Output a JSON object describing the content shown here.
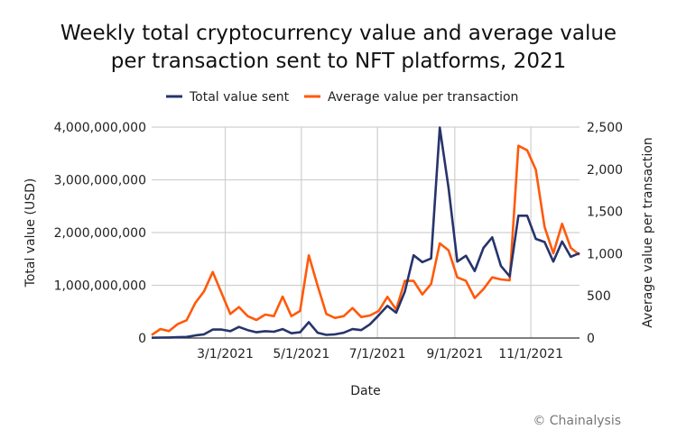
{
  "chart_data": {
    "type": "line",
    "title": "Weekly total cryptocurrency value and average value per transaction sent to NFT platforms, 2021",
    "xlabel": "Date",
    "ylabel_left": "Total value (USD)",
    "ylabel_right": "Average value per transaction",
    "x_tick_labels": [
      "3/1/2021",
      "5/1/2021",
      "7/1/2021",
      "9/1/2021",
      "11/1/2021"
    ],
    "x_tick_dates": [
      "2021-03-01",
      "2021-05-01",
      "2021-07-01",
      "2021-09-01",
      "2021-11-01"
    ],
    "y_left_tick_labels": [
      "0",
      "1,000,000,000",
      "2,000,000,000",
      "3,000,000,000",
      "4,000,000,000"
    ],
    "y_right_tick_labels": [
      "0",
      "500",
      "1,000",
      "1,500",
      "2,000",
      "2,500"
    ],
    "ylim_left": [
      0,
      4000000000
    ],
    "ylim_right": [
      0,
      2500
    ],
    "grid": true,
    "legend_position": "top",
    "x_start": "2021-01-01",
    "x_interval_days": 7,
    "series": [
      {
        "name": "Total value sent",
        "axis": "left",
        "color": "#27346b",
        "values": [
          5000000,
          8000000,
          10000000,
          15000000,
          20000000,
          50000000,
          70000000,
          160000000,
          160000000,
          130000000,
          210000000,
          150000000,
          110000000,
          130000000,
          120000000,
          170000000,
          90000000,
          110000000,
          300000000,
          100000000,
          60000000,
          70000000,
          100000000,
          170000000,
          150000000,
          260000000,
          430000000,
          610000000,
          480000000,
          880000000,
          1570000000,
          1440000000,
          1510000000,
          3990000000,
          2850000000,
          1450000000,
          1560000000,
          1270000000,
          1710000000,
          1910000000,
          1370000000,
          1170000000,
          2320000000,
          2320000000,
          1880000000,
          1820000000,
          1450000000,
          1830000000,
          1540000000,
          1610000000
        ]
      },
      {
        "name": "Average value per transaction",
        "axis": "right",
        "color": "#ff5a0a",
        "values": [
          35,
          107,
          82,
          167,
          210,
          417,
          552,
          783,
          534,
          285,
          367,
          260,
          214,
          278,
          260,
          491,
          260,
          320,
          980,
          623,
          285,
          238,
          260,
          356,
          249,
          267,
          320,
          488,
          338,
          677,
          677,
          516,
          641,
          1122,
          1040,
          719,
          677,
          474,
          580,
          719,
          694,
          684,
          2279,
          2225,
          1995,
          1317,
          1004,
          1354,
          1068,
          986
        ]
      }
    ]
  },
  "credit": "© Chainalysis"
}
